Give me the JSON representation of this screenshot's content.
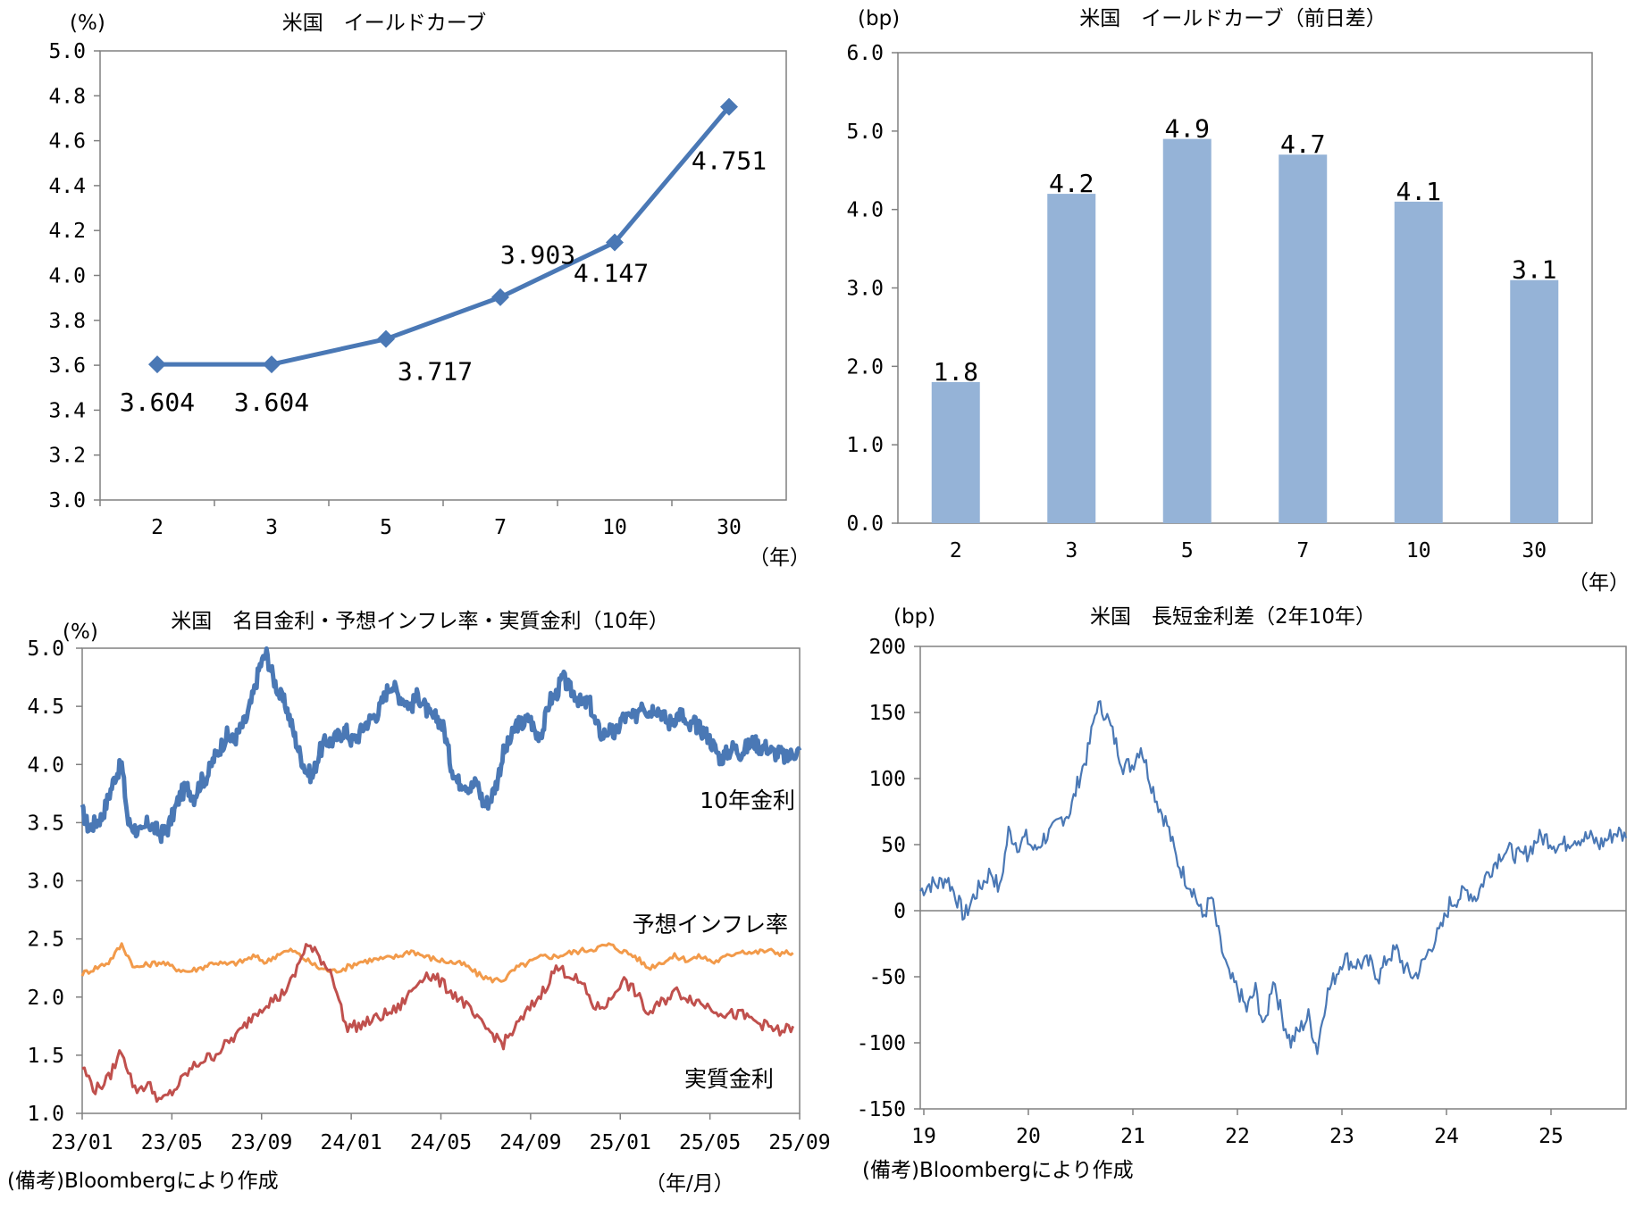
{
  "colors": {
    "blue_line": "#4a78b5",
    "bar": "#95b3d7",
    "orange": "#f29a4a",
    "red": "#c0504d",
    "axis": "#808080"
  },
  "chart_data": [
    {
      "id": "c1",
      "type": "line",
      "title": "米国　イールドカーブ",
      "ylabel": "(%)",
      "xlabel": "（年）",
      "categories": [
        "2",
        "3",
        "5",
        "7",
        "10",
        "30"
      ],
      "values": [
        3.604,
        3.604,
        3.717,
        3.903,
        4.147,
        4.751
      ],
      "data_labels": [
        "3.604",
        "3.604",
        "3.717",
        "3.903",
        "4.147",
        "4.751"
      ],
      "ylim": [
        3.0,
        5.0
      ],
      "yticks": [
        "3.0",
        "3.2",
        "3.4",
        "3.6",
        "3.8",
        "4.0",
        "4.2",
        "4.4",
        "4.6",
        "4.8",
        "5.0"
      ]
    },
    {
      "id": "c2",
      "type": "bar",
      "title": "米国　イールドカーブ（前日差）",
      "ylabel": "(bp)",
      "xlabel": "（年）",
      "categories": [
        "2",
        "3",
        "5",
        "7",
        "10",
        "30"
      ],
      "values": [
        1.8,
        4.2,
        4.9,
        4.7,
        4.1,
        3.1
      ],
      "data_labels": [
        "1.8",
        "4.2",
        "4.9",
        "4.7",
        "4.1",
        "3.1"
      ],
      "ylim": [
        0.0,
        6.0
      ],
      "yticks": [
        "0.0",
        "1.0",
        "2.0",
        "3.0",
        "4.0",
        "5.0",
        "6.0"
      ]
    },
    {
      "id": "c3",
      "type": "line",
      "title": "米国　名目金利・予想インフレ率・実質金利（10年）",
      "ylabel": "(%)",
      "xlabel": "（年/月）",
      "note": "(備考)Bloombergにより作成",
      "xticks": [
        "23/01",
        "23/05",
        "23/09",
        "24/01",
        "24/05",
        "24/09",
        "25/01",
        "25/05",
        "25/09"
      ],
      "ylim": [
        1.0,
        5.0
      ],
      "yticks": [
        "1.0",
        "1.5",
        "2.0",
        "2.5",
        "3.0",
        "3.5",
        "4.0",
        "4.5",
        "5.0"
      ],
      "series": [
        {
          "name": "10年金利",
          "x": [
            0,
            0.3,
            0.6,
            0.9,
            1.2,
            1.5,
            1.8,
            2.1,
            2.4,
            2.7,
            3.0,
            3.3,
            3.6,
            3.9,
            4.2,
            4.5,
            4.8,
            5.1,
            5.4,
            5.7,
            6.0,
            6.3,
            6.6,
            6.9,
            7.2,
            7.5,
            7.8,
            8.1,
            8.4,
            8.7,
            9.0,
            9.3,
            9.6,
            9.9,
            10.2,
            10.5,
            10.8,
            11.1,
            11.4,
            11.7,
            12.0,
            12.3,
            12.6,
            12.9,
            13.2,
            13.5,
            13.8,
            14.1,
            14.4,
            14.7,
            15.0,
            15.3,
            15.6,
            15.9,
            16.2,
            16.5,
            16.8,
            17.1,
            17.4,
            17.7,
            18.0,
            18.3,
            18.6,
            18.9,
            19.2,
            19.5,
            19.8,
            20.1,
            20.4,
            20.7,
            21.0,
            21.3,
            21.6,
            21.9,
            22.2,
            22.5,
            22.8,
            23.1,
            23.4,
            23.7,
            24.0,
            24.3,
            24.6,
            24.9,
            25.2,
            25.5,
            25.8,
            26.1,
            26.4,
            26.7,
            27.0,
            27.3,
            27.6,
            27.9,
            28.2,
            28.5,
            28.8,
            29.1,
            29.4,
            29.7,
            30.0,
            30.3,
            30.6,
            30.9,
            31.2,
            31.5,
            31.8,
            32.1,
            32.4,
            32.7
          ],
          "values": [
            3.6,
            3.45,
            3.5,
            3.55,
            3.72,
            3.9,
            4.0,
            3.5,
            3.45,
            3.4,
            3.5,
            3.45,
            3.4,
            3.45,
            3.6,
            3.75,
            3.8,
            3.72,
            3.85,
            3.9,
            4.05,
            4.15,
            4.25,
            4.2,
            4.3,
            4.4,
            4.6,
            4.85,
            4.95,
            4.75,
            4.6,
            4.5,
            4.3,
            4.1,
            3.95,
            3.9,
            4.1,
            4.2,
            4.2,
            4.25,
            4.3,
            4.2,
            4.25,
            4.35,
            4.4,
            4.45,
            4.6,
            4.7,
            4.6,
            4.55,
            4.5,
            4.6,
            4.5,
            4.4,
            4.4,
            4.3,
            4.0,
            3.85,
            3.85,
            3.8,
            3.85,
            3.65,
            3.7,
            3.85,
            4.1,
            4.2,
            4.35,
            4.35,
            4.4,
            4.25,
            4.3,
            4.55,
            4.6,
            4.75,
            4.65,
            4.6,
            4.5,
            4.55,
            4.35,
            4.25,
            4.3,
            4.25,
            4.4,
            4.4,
            4.4,
            4.55,
            4.45,
            4.5,
            4.45,
            4.35,
            4.4,
            4.45,
            4.3,
            4.35,
            4.3,
            4.25,
            4.15,
            4.05,
            4.1,
            4.15,
            4.1,
            4.15,
            4.2,
            4.15,
            4.15,
            4.1,
            4.1,
            4.05,
            4.1,
            4.12
          ]
        },
        {
          "name": "予想インフレ率",
          "x": [
            0,
            0.6,
            1.2,
            1.8,
            2.4,
            3.0,
            3.6,
            4.2,
            4.8,
            5.4,
            6.0,
            6.6,
            7.2,
            7.8,
            8.4,
            9.0,
            9.6,
            10.2,
            10.8,
            11.4,
            12.0,
            12.6,
            13.2,
            13.8,
            14.4,
            15.0,
            15.6,
            16.2,
            16.8,
            17.4,
            18.0,
            18.6,
            19.2,
            19.8,
            20.4,
            21.0,
            21.6,
            22.2,
            22.8,
            23.4,
            24.0,
            24.6,
            25.2,
            25.8,
            26.4,
            27.0,
            27.6,
            28.2,
            28.8,
            29.4,
            30.0,
            30.6,
            31.2,
            31.8,
            32.4
          ],
          "values": [
            2.2,
            2.25,
            2.3,
            2.45,
            2.25,
            2.28,
            2.3,
            2.25,
            2.22,
            2.25,
            2.3,
            2.28,
            2.3,
            2.35,
            2.3,
            2.38,
            2.4,
            2.32,
            2.25,
            2.22,
            2.25,
            2.3,
            2.32,
            2.33,
            2.35,
            2.4,
            2.35,
            2.32,
            2.3,
            2.28,
            2.2,
            2.15,
            2.15,
            2.25,
            2.3,
            2.35,
            2.35,
            2.38,
            2.4,
            2.42,
            2.45,
            2.4,
            2.35,
            2.25,
            2.3,
            2.35,
            2.32,
            2.35,
            2.3,
            2.35,
            2.4,
            2.38,
            2.4,
            2.38,
            2.38
          ]
        },
        {
          "name": "実質金利",
          "x": [
            0,
            0.6,
            1.2,
            1.8,
            2.4,
            3.0,
            3.6,
            4.2,
            4.8,
            5.4,
            6.0,
            6.6,
            7.2,
            7.8,
            8.4,
            9.0,
            9.6,
            10.2,
            10.8,
            11.4,
            12.0,
            12.6,
            13.2,
            13.8,
            14.4,
            15.0,
            15.6,
            16.2,
            16.8,
            17.4,
            18.0,
            18.6,
            19.2,
            19.8,
            20.4,
            21.0,
            21.6,
            22.2,
            22.8,
            23.4,
            24.0,
            24.6,
            25.2,
            25.8,
            26.4,
            27.0,
            27.6,
            28.2,
            28.8,
            29.4,
            30.0,
            30.6,
            31.2,
            31.8,
            32.4
          ],
          "values": [
            1.4,
            1.2,
            1.3,
            1.55,
            1.2,
            1.25,
            1.1,
            1.2,
            1.35,
            1.45,
            1.5,
            1.6,
            1.7,
            1.85,
            1.95,
            2.0,
            2.15,
            2.45,
            2.35,
            2.2,
            1.75,
            1.75,
            1.8,
            1.85,
            1.9,
            2.05,
            2.2,
            2.15,
            2.05,
            1.95,
            1.8,
            1.7,
            1.6,
            1.75,
            1.9,
            2.05,
            2.25,
            2.2,
            2.1,
            1.9,
            1.95,
            2.15,
            2.05,
            1.85,
            1.95,
            2.05,
            2.0,
            1.95,
            1.9,
            1.85,
            1.85,
            1.8,
            1.75,
            1.7,
            1.75
          ]
        }
      ]
    },
    {
      "id": "c4",
      "type": "line",
      "title": "米国　長短金利差（2年10年）",
      "ylabel": "(bp)",
      "note": "(備考)Bloombergにより作成",
      "xticks": [
        "19",
        "20",
        "21",
        "22",
        "23",
        "24",
        "25"
      ],
      "ylim": [
        -150,
        200
      ],
      "yticks": [
        "-150",
        "-100",
        "-50",
        "0",
        "50",
        "100",
        "150",
        "200"
      ],
      "series": [
        {
          "name": "",
          "x": [
            0,
            1,
            2,
            3,
            4,
            5,
            6,
            7,
            8,
            9,
            10,
            11,
            12,
            13,
            14,
            15,
            16,
            17,
            18,
            19,
            20,
            21,
            22,
            23,
            24,
            25,
            26,
            27,
            28,
            29,
            30,
            31,
            32,
            33,
            34,
            35,
            36,
            37,
            38,
            39,
            40,
            41,
            42,
            43,
            44,
            45,
            46,
            47,
            48,
            49,
            50,
            51,
            52,
            53,
            54,
            55,
            56,
            57,
            58,
            59,
            60,
            61,
            62,
            63,
            64,
            65,
            66,
            67,
            68,
            69,
            70,
            71,
            72,
            73,
            74,
            75,
            76,
            77,
            78,
            79,
            80
          ],
          "values": [
            15,
            20,
            20,
            25,
            12,
            -5,
            10,
            20,
            30,
            15,
            60,
            50,
            55,
            45,
            55,
            60,
            70,
            75,
            100,
            120,
            155,
            150,
            130,
            110,
            110,
            125,
            100,
            80,
            65,
            40,
            25,
            15,
            -5,
            10,
            -25,
            -50,
            -60,
            -75,
            -60,
            -90,
            -50,
            -80,
            -100,
            -90,
            -80,
            -105,
            -65,
            -50,
            -35,
            -40,
            -40,
            -40,
            -50,
            -35,
            -30,
            -45,
            -50,
            -40,
            -25,
            -15,
            5,
            10,
            15,
            10,
            25,
            35,
            45,
            45,
            40,
            45,
            55,
            55,
            50,
            50,
            55,
            55,
            55,
            50,
            55,
            60,
            55
          ]
        }
      ]
    }
  ]
}
